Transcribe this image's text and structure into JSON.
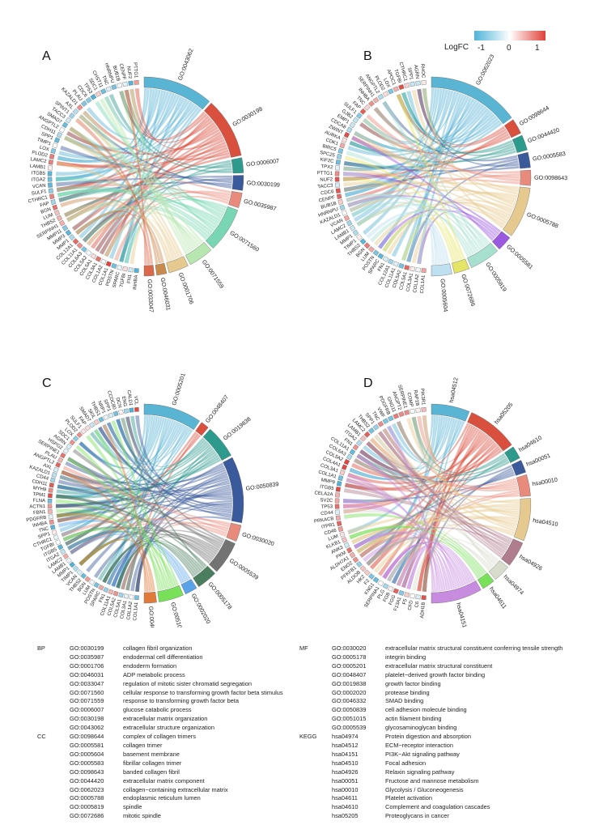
{
  "legend": {
    "title": "LogFC",
    "ticks": [
      "-1",
      "0",
      "1"
    ],
    "colors": [
      "#4fb3d9",
      "#ffffff",
      "#e0413a"
    ]
  },
  "chart_data": [
    {
      "type": "chord",
      "panel": "A",
      "terms": [
        "GO:0043062",
        "GO:0030198",
        "GO:0006007",
        "GO:0030199",
        "GO:0035987",
        "GO:0071560",
        "GO:0071559",
        "GO:0001706",
        "GO:0046031",
        "GO:0033047"
      ],
      "term_colors": [
        "#5ab4d4",
        "#d9503f",
        "#2e9a8e",
        "#3b5a9b",
        "#e98b7c",
        "#79d6b4",
        "#b7e6b0",
        "#e6c98e",
        "#c98a4e",
        "#d9694a"
      ],
      "term_sizes": [
        14,
        12,
        3,
        3,
        3,
        9,
        5,
        4,
        2,
        2
      ],
      "genes": [
        "INHBA",
        "FN1",
        "TGFBI",
        "SPARC",
        "POSTN",
        "COL1A1",
        "COL1A2",
        "COL3A1",
        "COL5A1",
        "COL5A2",
        "COL6A3",
        "COL11A1",
        "COL12A1",
        "MMP1",
        "MMP3",
        "MMP11",
        "SERPINH1",
        "THBS2",
        "LUM",
        "BGN",
        "FAP",
        "CTHRC1",
        "SULF1",
        "VCAN",
        "ITGA2",
        "ITGB5",
        "LAMB1",
        "LAMC2",
        "PLOD2",
        "LOX",
        "TIMP1",
        "SPP1",
        "CDH11",
        "ANGPTL2",
        "SMAD7",
        "TACC3",
        "SPINT1",
        "AXL",
        "KAZALD1",
        "PLAU",
        "CDC6",
        "TP53",
        "SDC1",
        "CHST11",
        "TNC",
        "HNRNPU",
        "BUB1B",
        "CENPF",
        "NUF2",
        "PTTG1"
      ]
    },
    {
      "type": "chord",
      "panel": "B",
      "terms": [
        "GO:0062023",
        "GO:0098644",
        "GO:0044420",
        "GO:0005583",
        "GO:0098643",
        "GO:0005788",
        "GO:0005581",
        "GO:0005819",
        "GO:0072686",
        "GO:0005604"
      ],
      "term_colors": [
        "#5ab4d4",
        "#d9503f",
        "#2e9a8e",
        "#3b5a9b",
        "#e98b7c",
        "#e6c98e",
        "#9b59e0",
        "#a8e0d0",
        "#e4e466",
        "#bfe0f0"
      ],
      "term_sizes": [
        18,
        3,
        3,
        3,
        3,
        10,
        3,
        6,
        3,
        4
      ],
      "genes": [
        "COL1A1",
        "COL1A2",
        "COL3A1",
        "COL5A1",
        "COL5A2",
        "COL11A1",
        "COL12A1",
        "FN1",
        "SPARC",
        "POSTN",
        "LUM",
        "BGN",
        "THBS2",
        "TIMP1",
        "MMP1",
        "LAMB1",
        "LAMC2",
        "VCAN",
        "KAZALD1",
        "HNRNPU",
        "BUB1B",
        "CENPF",
        "CDC6",
        "TACC3",
        "NUF2",
        "PTTG1",
        "TPX2",
        "KIF2C",
        "SPC25",
        "BIRC5",
        "CDK1",
        "AURKA",
        "ZWINT",
        "CDCA8",
        "EMP1",
        "GJB2",
        "SULF1",
        "FAP",
        "TNC",
        "INHBA",
        "SERPINH1",
        "ANGPTL2",
        "PLOD2",
        "LOX",
        "APOC1",
        "TGFBI",
        "CTHRC1",
        "SPP1",
        "AGRN",
        "RHOC"
      ]
    },
    {
      "type": "chord",
      "panel": "C",
      "terms": [
        "GO:0005201",
        "GO:0048407",
        "GO:0019838",
        "GO:0050839",
        "GO:0030020",
        "GO:0005539",
        "GO:0005178",
        "GO:0002020",
        "GO:0051015",
        "GO:0046332"
      ],
      "term_colors": [
        "#5ab4d4",
        "#d9503f",
        "#2e9a8e",
        "#3b5a9b",
        "#e98b7c",
        "#737373",
        "#4a7e5e",
        "#5aa3e8",
        "#79e05a",
        "#e07a3a"
      ],
      "term_sizes": [
        14,
        2,
        8,
        16,
        4,
        8,
        5,
        3,
        6,
        3
      ],
      "genes": [
        "COL1A1",
        "COL1A2",
        "COL3A1",
        "COL5A1",
        "COL5A2",
        "COL11A1",
        "FN1",
        "SPARC",
        "POSTN",
        "LUM",
        "BGN",
        "THBS2",
        "VCAN",
        "TIMP1",
        "MMP1",
        "LAMB1",
        "LAMC2",
        "ITGA2",
        "ITGB5",
        "TGFBI",
        "CTHRC1",
        "SPP1",
        "TNC",
        "INHBA",
        "PDGFRB",
        "FBN1",
        "ACTN1",
        "FLNA",
        "TPM1",
        "MYH9",
        "CDH11",
        "CD44",
        "KAZALD1",
        "AXL",
        "ANGPTL2",
        "PLAU",
        "SERPINE1",
        "HSPG2",
        "AGRN",
        "SDC1",
        "LOX",
        "PLOD2",
        "SULF1",
        "FAP",
        "SMAD7",
        "SKIL",
        "THBS1",
        "NRP1",
        "SPP1",
        "CCDC80",
        "DCN",
        "ENG",
        "CALD1",
        "VCL"
      ]
    },
    {
      "type": "chord",
      "panel": "D",
      "terms": [
        "hsa04512",
        "hsa05205",
        "hsa04610",
        "hsa00051",
        "hsa00010",
        "hsa04510",
        "hsa04926",
        "hsa04974",
        "hsa04611",
        "hsa04151"
      ],
      "term_colors": [
        "#5ab4d4",
        "#d9503f",
        "#2e9a8e",
        "#3b5a9b",
        "#e98b7c",
        "#e6c98e",
        "#b07d8e",
        "#d8dccd",
        "#79e05a",
        "#c78be0"
      ],
      "term_sizes": [
        9,
        12,
        3,
        3,
        5,
        10,
        6,
        4,
        3,
        12
      ],
      "genes": [
        "ADH1B",
        "C6",
        "CFD",
        "F5",
        "F13A1",
        "FGG",
        "FGB",
        "PLG",
        "SERPINA1",
        "KNG1",
        "F2",
        "HK2",
        "ALDOB",
        "PFKFB1",
        "ENO2",
        "ALDH7A1",
        "PKM",
        "ANK3",
        "KLKB1",
        "LUM",
        "CD46",
        "ITPR1",
        "PRKACB",
        "CD44",
        "TP53",
        "SV2C",
        "CELA2A",
        "ITGB5",
        "MMP9",
        "COL1A1",
        "COL3A1",
        "COL4A1",
        "COL5A2",
        "COL6A3",
        "COL11A1",
        "FN1",
        "ITGA2",
        "LAMB1",
        "LAMC2",
        "THBS2",
        "SPP1",
        "TNC",
        "VWF",
        "PDGFRB",
        "GNG11",
        "ANGPT2",
        "SERPINE1",
        "COMP",
        "RAP1B",
        "PIK3R1"
      ]
    }
  ],
  "tables": {
    "left": [
      {
        "cat": "BP",
        "term": "GO:0030199",
        "desc": "collagen fibril organization"
      },
      {
        "cat": "",
        "term": "GO:0035987",
        "desc": "endodermal cell differentiation"
      },
      {
        "cat": "",
        "term": "GO:0001706",
        "desc": "endoderm formation"
      },
      {
        "cat": "",
        "term": "GO:0046031",
        "desc": "ADP metabolic process"
      },
      {
        "cat": "",
        "term": "GO:0033047",
        "desc": "regulation of mitotic sister chromatid segregation"
      },
      {
        "cat": "",
        "term": "GO:0071560",
        "desc": "cellular response to transforming growth factor beta stimulus"
      },
      {
        "cat": "",
        "term": "GO:0071559",
        "desc": "response to transforming growth factor beta"
      },
      {
        "cat": "",
        "term": "GO:0006007",
        "desc": "glucose catabolic process"
      },
      {
        "cat": "",
        "term": "GO:0030198",
        "desc": "extracellular matrix organization"
      },
      {
        "cat": "",
        "term": "GO:0043062",
        "desc": "extracellular structure organization"
      },
      {
        "cat": "CC",
        "term": "GO:0098644",
        "desc": "complex of collagen trimers"
      },
      {
        "cat": "",
        "term": "GO:0005581",
        "desc": "collagen trimer"
      },
      {
        "cat": "",
        "term": "GO:0005604",
        "desc": "basement membrane"
      },
      {
        "cat": "",
        "term": "GO:0005583",
        "desc": "fibrillar collagen trimer"
      },
      {
        "cat": "",
        "term": "GO:0098643",
        "desc": "banded collagen fibril"
      },
      {
        "cat": "",
        "term": "GO:0044420",
        "desc": "extracellular matrix component"
      },
      {
        "cat": "",
        "term": "GO:0062023",
        "desc": "collagen−containing extracellular matrix"
      },
      {
        "cat": "",
        "term": "GO:0005788",
        "desc": "endoplasmic reticulum lumen"
      },
      {
        "cat": "",
        "term": "GO:0005819",
        "desc": "spindle"
      },
      {
        "cat": "",
        "term": "GO:0072686",
        "desc": "mitotic spindle"
      }
    ],
    "right": [
      {
        "cat": "MF",
        "term": "GO:0030020",
        "desc": "extracellular matrix structural constituent conferring tensile strength"
      },
      {
        "cat": "",
        "term": "GO:0005178",
        "desc": "integrin binding"
      },
      {
        "cat": "",
        "term": "GO:0005201",
        "desc": "extracellular matrix structural constituent"
      },
      {
        "cat": "",
        "term": "GO:0048407",
        "desc": "platelet−derived growth factor binding"
      },
      {
        "cat": "",
        "term": "GO:0019838",
        "desc": "growth factor binding"
      },
      {
        "cat": "",
        "term": "GO:0002020",
        "desc": "protease binding"
      },
      {
        "cat": "",
        "term": "GO:0046332",
        "desc": "SMAD binding"
      },
      {
        "cat": "",
        "term": "GO:0050839",
        "desc": "cell adhesion molecule binding"
      },
      {
        "cat": "",
        "term": "GO:0051015",
        "desc": "actin filament binding"
      },
      {
        "cat": "",
        "term": "GO:0005539",
        "desc": "glycosaminoglycan binding"
      },
      {
        "cat": "KEGG",
        "term": "hsa04974",
        "desc": "Protein digestion and absorption"
      },
      {
        "cat": "",
        "term": "hsa04512",
        "desc": "ECM−receptor interaction"
      },
      {
        "cat": "",
        "term": "hsa04151",
        "desc": "PI3K−Akt signaling pathway"
      },
      {
        "cat": "",
        "term": "hsa04510",
        "desc": "Focal adhesion"
      },
      {
        "cat": "",
        "term": "hsa04926",
        "desc": "Relaxin signaling pathway"
      },
      {
        "cat": "",
        "term": "hsa00051",
        "desc": "Fructose and mannose metabolism"
      },
      {
        "cat": "",
        "term": "hsa00010",
        "desc": "Glycolysis / Gluconeogenesis"
      },
      {
        "cat": "",
        "term": "hsa04611",
        "desc": "Platelet activation"
      },
      {
        "cat": "",
        "term": "hsa04610",
        "desc": "Complement and coagulation cascades"
      },
      {
        "cat": "",
        "term": "hsa05205",
        "desc": "Proteoglycans in cancer"
      }
    ]
  }
}
